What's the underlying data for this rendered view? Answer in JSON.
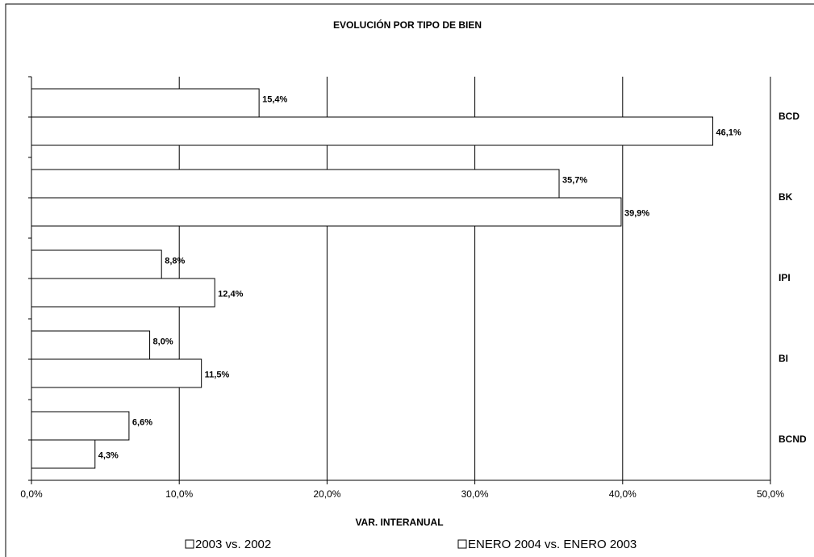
{
  "chart_data": {
    "type": "bar",
    "orientation": "horizontal",
    "title": "EVOLUCIÓN POR TIPO DE BIEN",
    "x_label": "VAR. INTERANUAL",
    "categories": [
      "BCD",
      "BK",
      "IPI",
      "BI",
      "BCND"
    ],
    "series": [
      {
        "name": "2003 vs. 2002",
        "color": "#ffffff",
        "values": [
          15.4,
          35.7,
          8.8,
          8.0,
          6.6
        ],
        "value_labels": [
          "15,4%",
          "35,7%",
          "8,8%",
          "8,0%",
          "6,6%"
        ]
      },
      {
        "name": "ENERO 2004 vs. ENERO 2003",
        "color": "#ffffff",
        "values": [
          46.1,
          39.9,
          12.4,
          11.5,
          4.3
        ],
        "value_labels": [
          "46,1%",
          "39,9%",
          "12,4%",
          "11,5%",
          "4,3%"
        ]
      }
    ],
    "xlim": [
      0,
      50
    ],
    "xticks": [
      {
        "value": 0,
        "label": "0,0%"
      },
      {
        "value": 10,
        "label": "10,0%"
      },
      {
        "value": 20,
        "label": "20,0%"
      },
      {
        "value": 30,
        "label": "30,0%"
      },
      {
        "value": 40,
        "label": "40,0%"
      },
      {
        "value": 50,
        "label": "50,0%"
      }
    ],
    "grid": true
  }
}
